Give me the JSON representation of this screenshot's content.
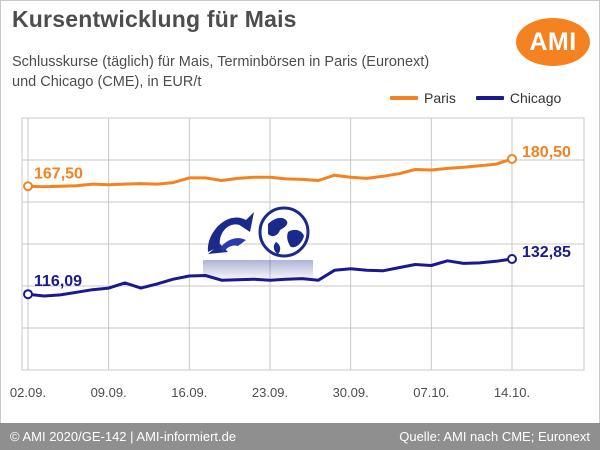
{
  "header": {
    "title": "Kursentwicklung für Mais",
    "subtitle_line1": "Schlusskurse (täglich) für Mais, Terminbörsen in Paris (Euronext)",
    "subtitle_line2": "und Chicago (CME), in EUR/t",
    "logo_text": "AMI"
  },
  "footer": {
    "left": "© AMI 2020/GE-142 | AMI-informiert.de",
    "right": "Quelle: AMI nach CME; Euronext"
  },
  "colors": {
    "paris": "#f58220",
    "chicago": "#1a1a8c",
    "grid": "#c8c8c8",
    "brand": "#f58220"
  },
  "chart_data": {
    "type": "line",
    "title": "Kursentwicklung für Mais",
    "subtitle": "Schlusskurse (täglich) für Mais, Terminbörsen in Paris (Euronext) und Chicago (CME), in EUR/t",
    "xlabel": "",
    "ylabel": "",
    "ylim": [
      80,
      200
    ],
    "grid": true,
    "legend_position": "top-right",
    "x_tick_labels": [
      "02.09.",
      "09.09.",
      "16.09.",
      "23.09.",
      "30.09.",
      "07.10.",
      "14.10."
    ],
    "x": [
      "02.09.",
      "03.09.",
      "04.09.",
      "07.09.",
      "08.09.",
      "09.09.",
      "10.09.",
      "11.09.",
      "14.09.",
      "15.09.",
      "16.09.",
      "17.09.",
      "18.09.",
      "21.09.",
      "22.09.",
      "23.09.",
      "24.09.",
      "25.09.",
      "28.09.",
      "29.09.",
      "30.09.",
      "01.10.",
      "02.10.",
      "05.10.",
      "06.10.",
      "07.10.",
      "08.10.",
      "09.10.",
      "12.10.",
      "13.10.",
      "14.10."
    ],
    "series": [
      {
        "name": "Paris",
        "values": [
          167.5,
          167.25,
          167.5,
          167.75,
          168.5,
          168.25,
          168.5,
          168.75,
          168.5,
          169.25,
          171.5,
          171.5,
          170.25,
          171.25,
          171.75,
          171.75,
          171.0,
          170.75,
          170.25,
          172.75,
          171.75,
          171.25,
          172.25,
          173.5,
          175.5,
          175.25,
          176.0,
          176.5,
          177.25,
          178.0,
          180.5
        ],
        "labels": [
          {
            "x": "02.09.",
            "text": "167,50"
          },
          {
            "x": "14.10.",
            "text": "180,50"
          }
        ]
      },
      {
        "name": "Chicago",
        "values": [
          116.09,
          115.25,
          115.75,
          117.0,
          118.25,
          119.0,
          121.5,
          119.0,
          121.0,
          123.25,
          124.75,
          125.0,
          122.75,
          123.0,
          123.25,
          122.75,
          123.25,
          123.5,
          122.75,
          127.5,
          128.25,
          127.5,
          127.25,
          128.75,
          130.25,
          129.75,
          132.0,
          130.75,
          131.0,
          131.75,
          132.85
        ],
        "labels": [
          {
            "x": "02.09.",
            "text": "116,09"
          },
          {
            "x": "14.10.",
            "text": "132,85"
          }
        ]
      }
    ]
  }
}
